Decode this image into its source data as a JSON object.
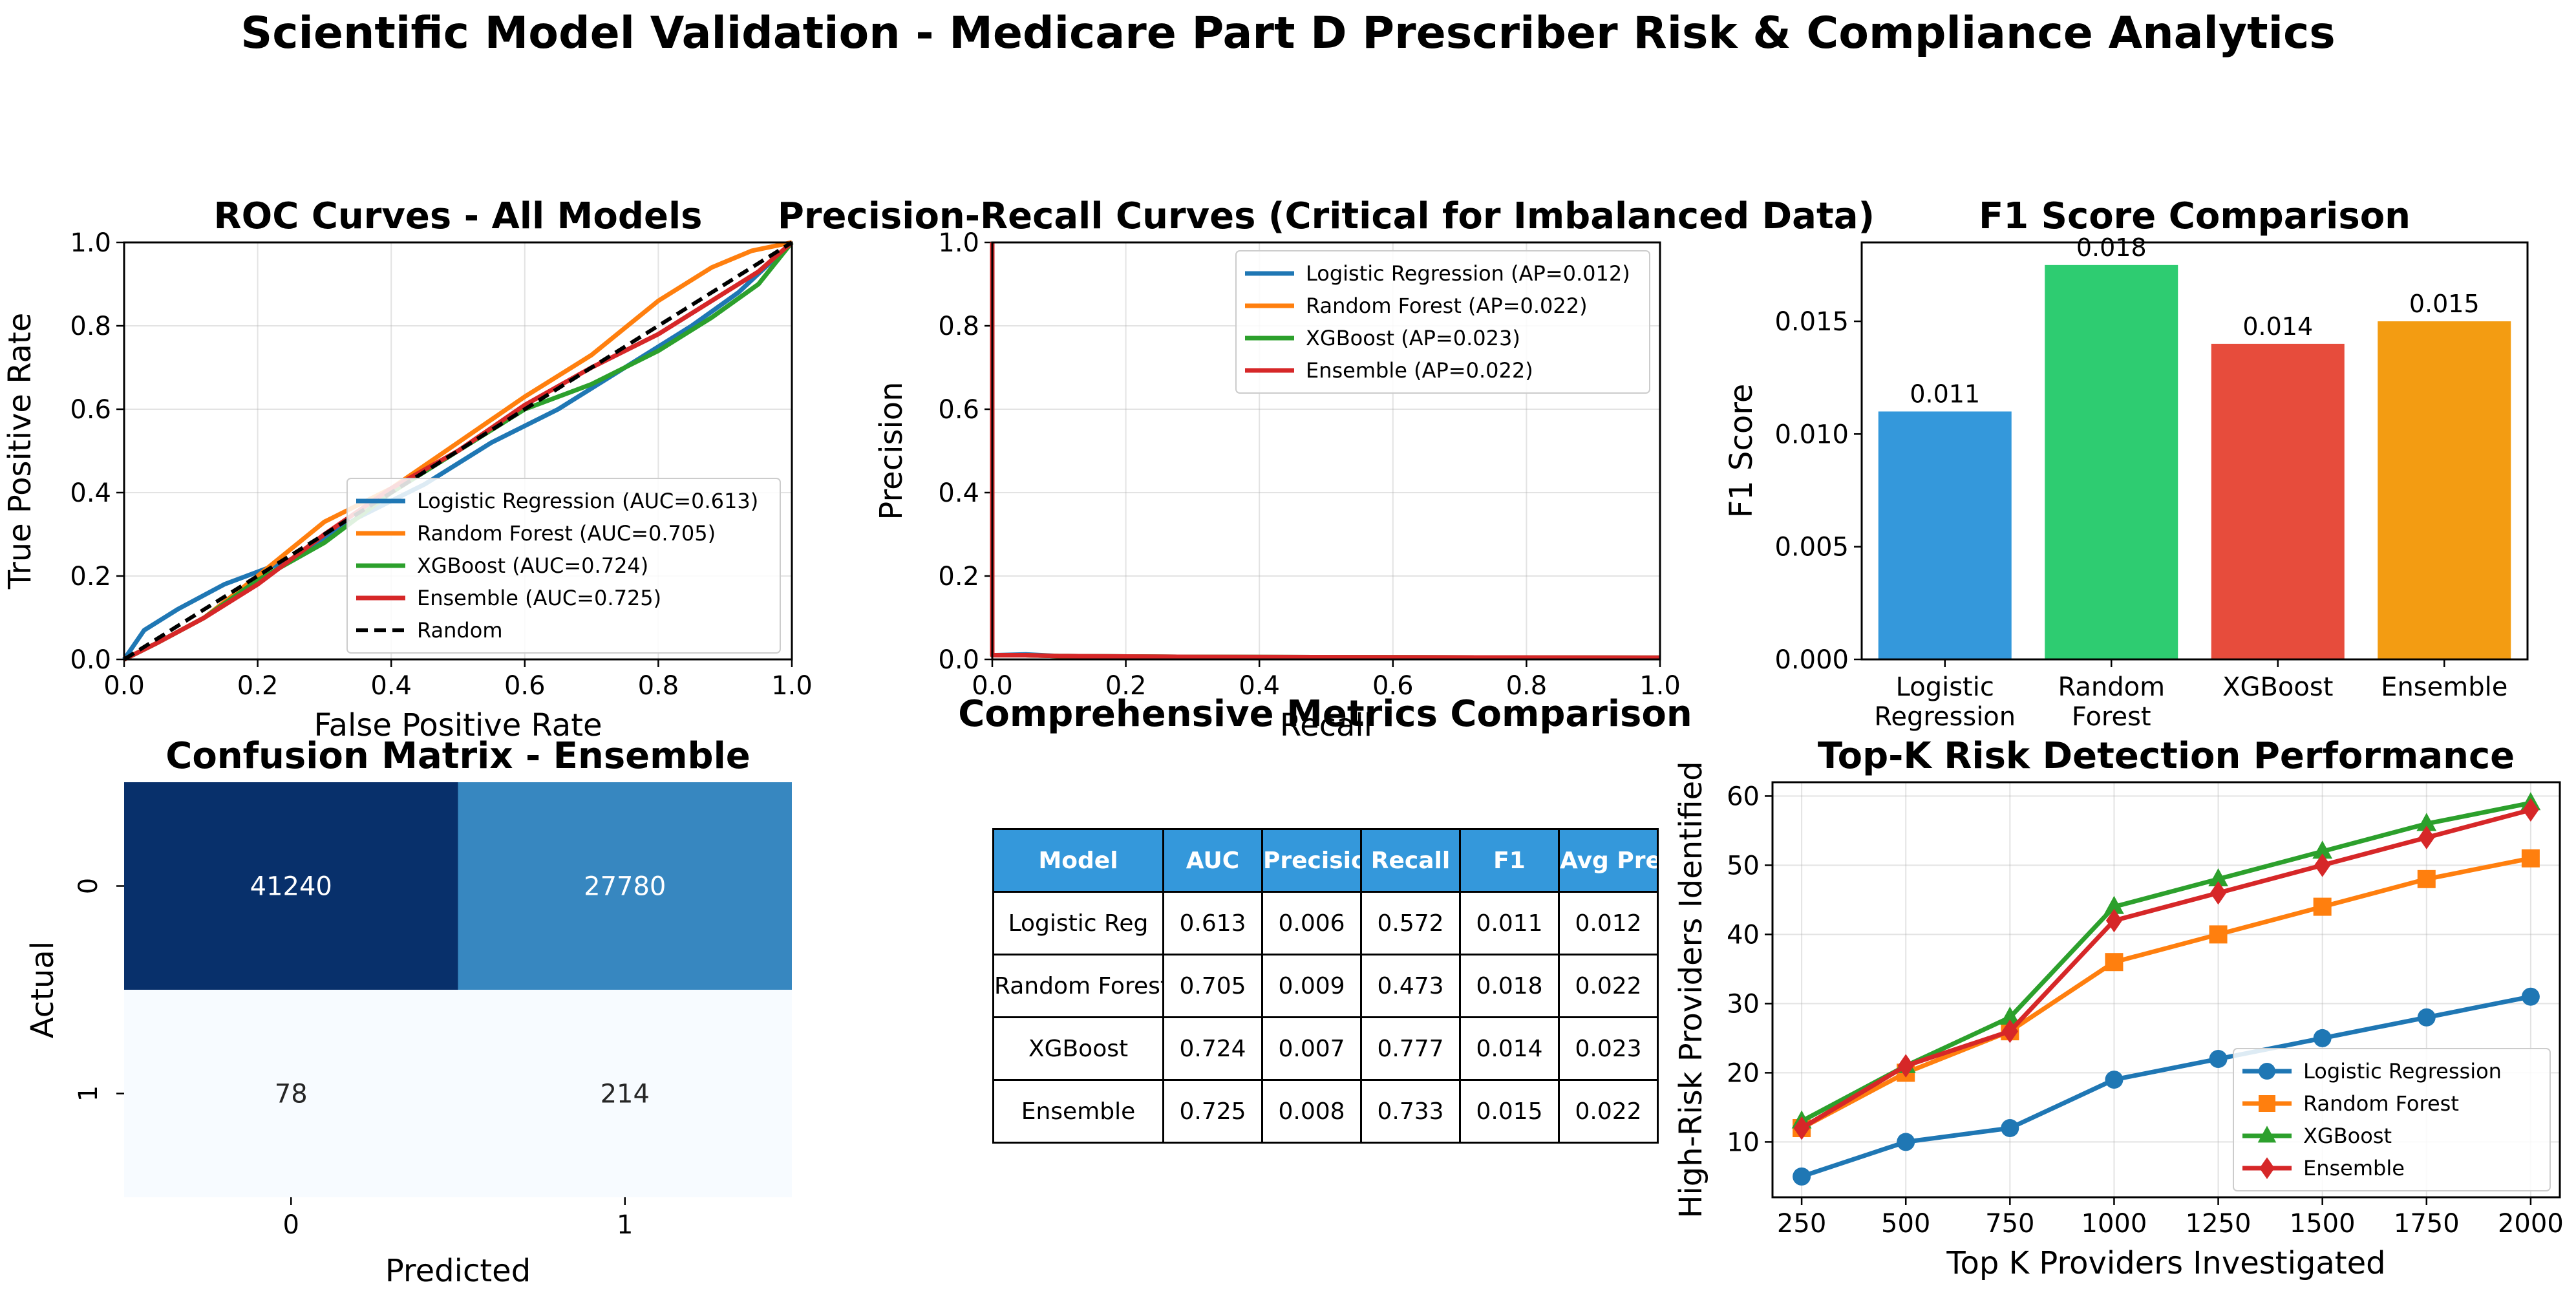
{
  "suptitle": "Scientific Model Validation - Medicare Part D Prescriber Risk & Compliance Analytics",
  "colors": {
    "blue": "#1f77b4",
    "orange": "#ff7f0e",
    "green": "#2ca02c",
    "red": "#d62728",
    "bar_blue": "#3498db",
    "bar_green": "#2ecc71",
    "bar_red": "#e74c3c",
    "bar_orange": "#f39c12"
  },
  "chart_data": [
    {
      "type": "line",
      "title": "ROC Curves - All Models",
      "xlabel": "False Positive Rate",
      "ylabel": "True Positive Rate",
      "xlim": [
        0,
        1
      ],
      "ylim": [
        0,
        1
      ],
      "xticks": [
        "0.0",
        "0.2",
        "0.4",
        "0.6",
        "0.8",
        "1.0"
      ],
      "yticks": [
        "0.0",
        "0.2",
        "0.4",
        "0.6",
        "0.8",
        "1.0"
      ],
      "grid": true,
      "legend_position": "lower-right",
      "series": [
        {
          "name": "Logistic Regression (AUC=0.613)",
          "color": "#1f77b4",
          "x": [
            0,
            0.03,
            0.08,
            0.15,
            0.25,
            0.35,
            0.45,
            0.55,
            0.65,
            0.75,
            0.85,
            0.92,
            1
          ],
          "y": [
            0,
            0.07,
            0.12,
            0.18,
            0.24,
            0.34,
            0.42,
            0.52,
            0.6,
            0.7,
            0.8,
            0.88,
            1
          ]
        },
        {
          "name": "Random Forest (AUC=0.705)",
          "color": "#ff7f0e",
          "x": [
            0,
            0.05,
            0.12,
            0.2,
            0.3,
            0.4,
            0.5,
            0.6,
            0.7,
            0.8,
            0.88,
            0.94,
            1
          ],
          "y": [
            0,
            0.04,
            0.1,
            0.2,
            0.33,
            0.41,
            0.52,
            0.63,
            0.73,
            0.86,
            0.94,
            0.98,
            1
          ]
        },
        {
          "name": "XGBoost (AUC=0.724)",
          "color": "#2ca02c",
          "x": [
            0,
            0.05,
            0.12,
            0.2,
            0.3,
            0.4,
            0.5,
            0.6,
            0.7,
            0.8,
            0.88,
            0.95,
            1
          ],
          "y": [
            0,
            0.04,
            0.1,
            0.19,
            0.28,
            0.4,
            0.5,
            0.6,
            0.66,
            0.74,
            0.82,
            0.9,
            1
          ]
        },
        {
          "name": "Ensemble (AUC=0.725)",
          "color": "#d62728",
          "x": [
            0,
            0.05,
            0.12,
            0.2,
            0.3,
            0.4,
            0.5,
            0.6,
            0.7,
            0.8,
            0.9,
            0.95,
            1
          ],
          "y": [
            0,
            0.04,
            0.1,
            0.18,
            0.3,
            0.41,
            0.5,
            0.61,
            0.7,
            0.78,
            0.88,
            0.93,
            1
          ]
        },
        {
          "name": "Random",
          "color": "#000000",
          "dashed": true,
          "x": [
            0,
            1
          ],
          "y": [
            0,
            1
          ]
        }
      ]
    },
    {
      "type": "line",
      "title": "Precision-Recall Curves (Critical for Imbalanced Data)",
      "xlabel": "Recall",
      "ylabel": "Precision",
      "xlim": [
        0,
        1
      ],
      "ylim": [
        0,
        1
      ],
      "xticks": [
        "0.0",
        "0.2",
        "0.4",
        "0.6",
        "0.8",
        "1.0"
      ],
      "yticks": [
        "0.0",
        "0.2",
        "0.4",
        "0.6",
        "0.8",
        "1.0"
      ],
      "grid": true,
      "legend_position": "upper-right",
      "series": [
        {
          "name": "Logistic Regression (AP=0.012)",
          "color": "#1f77b4",
          "x": [
            0,
            0,
            0.005,
            0.05,
            0.1,
            0.3,
            0.6,
            1
          ],
          "y": [
            1,
            0.01,
            0.01,
            0.012,
            0.008,
            0.006,
            0.005,
            0.004
          ]
        },
        {
          "name": "Random Forest (AP=0.022)",
          "color": "#ff7f0e",
          "x": [
            0,
            0,
            0.005,
            0.05,
            0.1,
            0.3,
            0.6,
            1
          ],
          "y": [
            1,
            0.01,
            0.01,
            0.01,
            0.008,
            0.006,
            0.005,
            0.004
          ]
        },
        {
          "name": "XGBoost (AP=0.023)",
          "color": "#2ca02c",
          "x": [
            0,
            0,
            0.005,
            0.05,
            0.1,
            0.3,
            0.6,
            1
          ],
          "y": [
            1,
            0.01,
            0.01,
            0.01,
            0.008,
            0.006,
            0.005,
            0.004
          ]
        },
        {
          "name": "Ensemble (AP=0.022)",
          "color": "#d62728",
          "x": [
            0,
            0,
            0.005,
            0.05,
            0.1,
            0.3,
            0.6,
            1
          ],
          "y": [
            1,
            0.01,
            0.01,
            0.01,
            0.008,
            0.006,
            0.005,
            0.004
          ]
        }
      ]
    },
    {
      "type": "bar",
      "title": "F1 Score Comparison",
      "ylabel": "F1 Score",
      "ylim": [
        0,
        0.0185
      ],
      "yticks": [
        "0.000",
        "0.005",
        "0.010",
        "0.015"
      ],
      "categories": [
        "Logistic\nRegression",
        "Random\nForest",
        "XGBoost",
        "Ensemble"
      ],
      "values": [
        0.011,
        0.0175,
        0.014,
        0.015
      ],
      "labels": [
        "0.011",
        "0.018",
        "0.014",
        "0.015"
      ],
      "bar_colors": [
        "#3498db",
        "#2ecc71",
        "#e74c3c",
        "#f39c12"
      ]
    },
    {
      "type": "heatmap",
      "title": "Confusion Matrix - Ensemble",
      "xlabel": "Predicted",
      "ylabel": "Actual",
      "x_ticks": [
        "0",
        "1"
      ],
      "y_ticks": [
        "0",
        "1"
      ],
      "values": [
        [
          41240,
          27780
        ],
        [
          78,
          214
        ]
      ],
      "cell_colors": [
        [
          "#08306b",
          "#3787c0"
        ],
        [
          "#f7fbff",
          "#f7fbff"
        ]
      ],
      "text_colors": [
        [
          "#ffffff",
          "#ffffff"
        ],
        [
          "#262626",
          "#262626"
        ]
      ]
    },
    {
      "type": "table",
      "title": "Comprehensive Metrics Comparison",
      "columns": [
        "Model",
        "AUC",
        "Precision",
        "Recall",
        "F1",
        "Avg Precision"
      ],
      "rows": [
        [
          "Logistic Reg",
          "0.613",
          "0.006",
          "0.572",
          "0.011",
          "0.012"
        ],
        [
          "Random Forest",
          "0.705",
          "0.009",
          "0.473",
          "0.018",
          "0.022"
        ],
        [
          "XGBoost",
          "0.724",
          "0.007",
          "0.777",
          "0.014",
          "0.023"
        ],
        [
          "Ensemble",
          "0.725",
          "0.008",
          "0.733",
          "0.015",
          "0.022"
        ]
      ]
    },
    {
      "type": "line",
      "title": "Top-K Risk Detection Performance",
      "xlabel": "Top K Providers Investigated",
      "ylabel": "High-Risk Providers Identified",
      "xlim": [
        180,
        2070
      ],
      "ylim": [
        2,
        62
      ],
      "xticks": [
        "250",
        "500",
        "750",
        "1000",
        "1250",
        "1500",
        "1750",
        "2000"
      ],
      "yticks": [
        "10",
        "20",
        "30",
        "40",
        "50",
        "60"
      ],
      "grid": true,
      "legend_position": "lower-right",
      "x": [
        250,
        500,
        750,
        1000,
        1250,
        1500,
        1750,
        2000
      ],
      "series": [
        {
          "name": "Logistic Regression",
          "color": "#1f77b4",
          "marker": "circle",
          "values": [
            5,
            10,
            12,
            19,
            22,
            25,
            28,
            31
          ]
        },
        {
          "name": "Random Forest",
          "color": "#ff7f0e",
          "marker": "square",
          "values": [
            12,
            20,
            26,
            36,
            40,
            44,
            48,
            51
          ]
        },
        {
          "name": "XGBoost",
          "color": "#2ca02c",
          "marker": "triangle",
          "values": [
            13,
            21,
            28,
            44,
            48,
            52,
            56,
            59
          ]
        },
        {
          "name": "Ensemble",
          "color": "#d62728",
          "marker": "diamond",
          "values": [
            12,
            21,
            26,
            42,
            46,
            50,
            54,
            58
          ]
        }
      ]
    }
  ]
}
